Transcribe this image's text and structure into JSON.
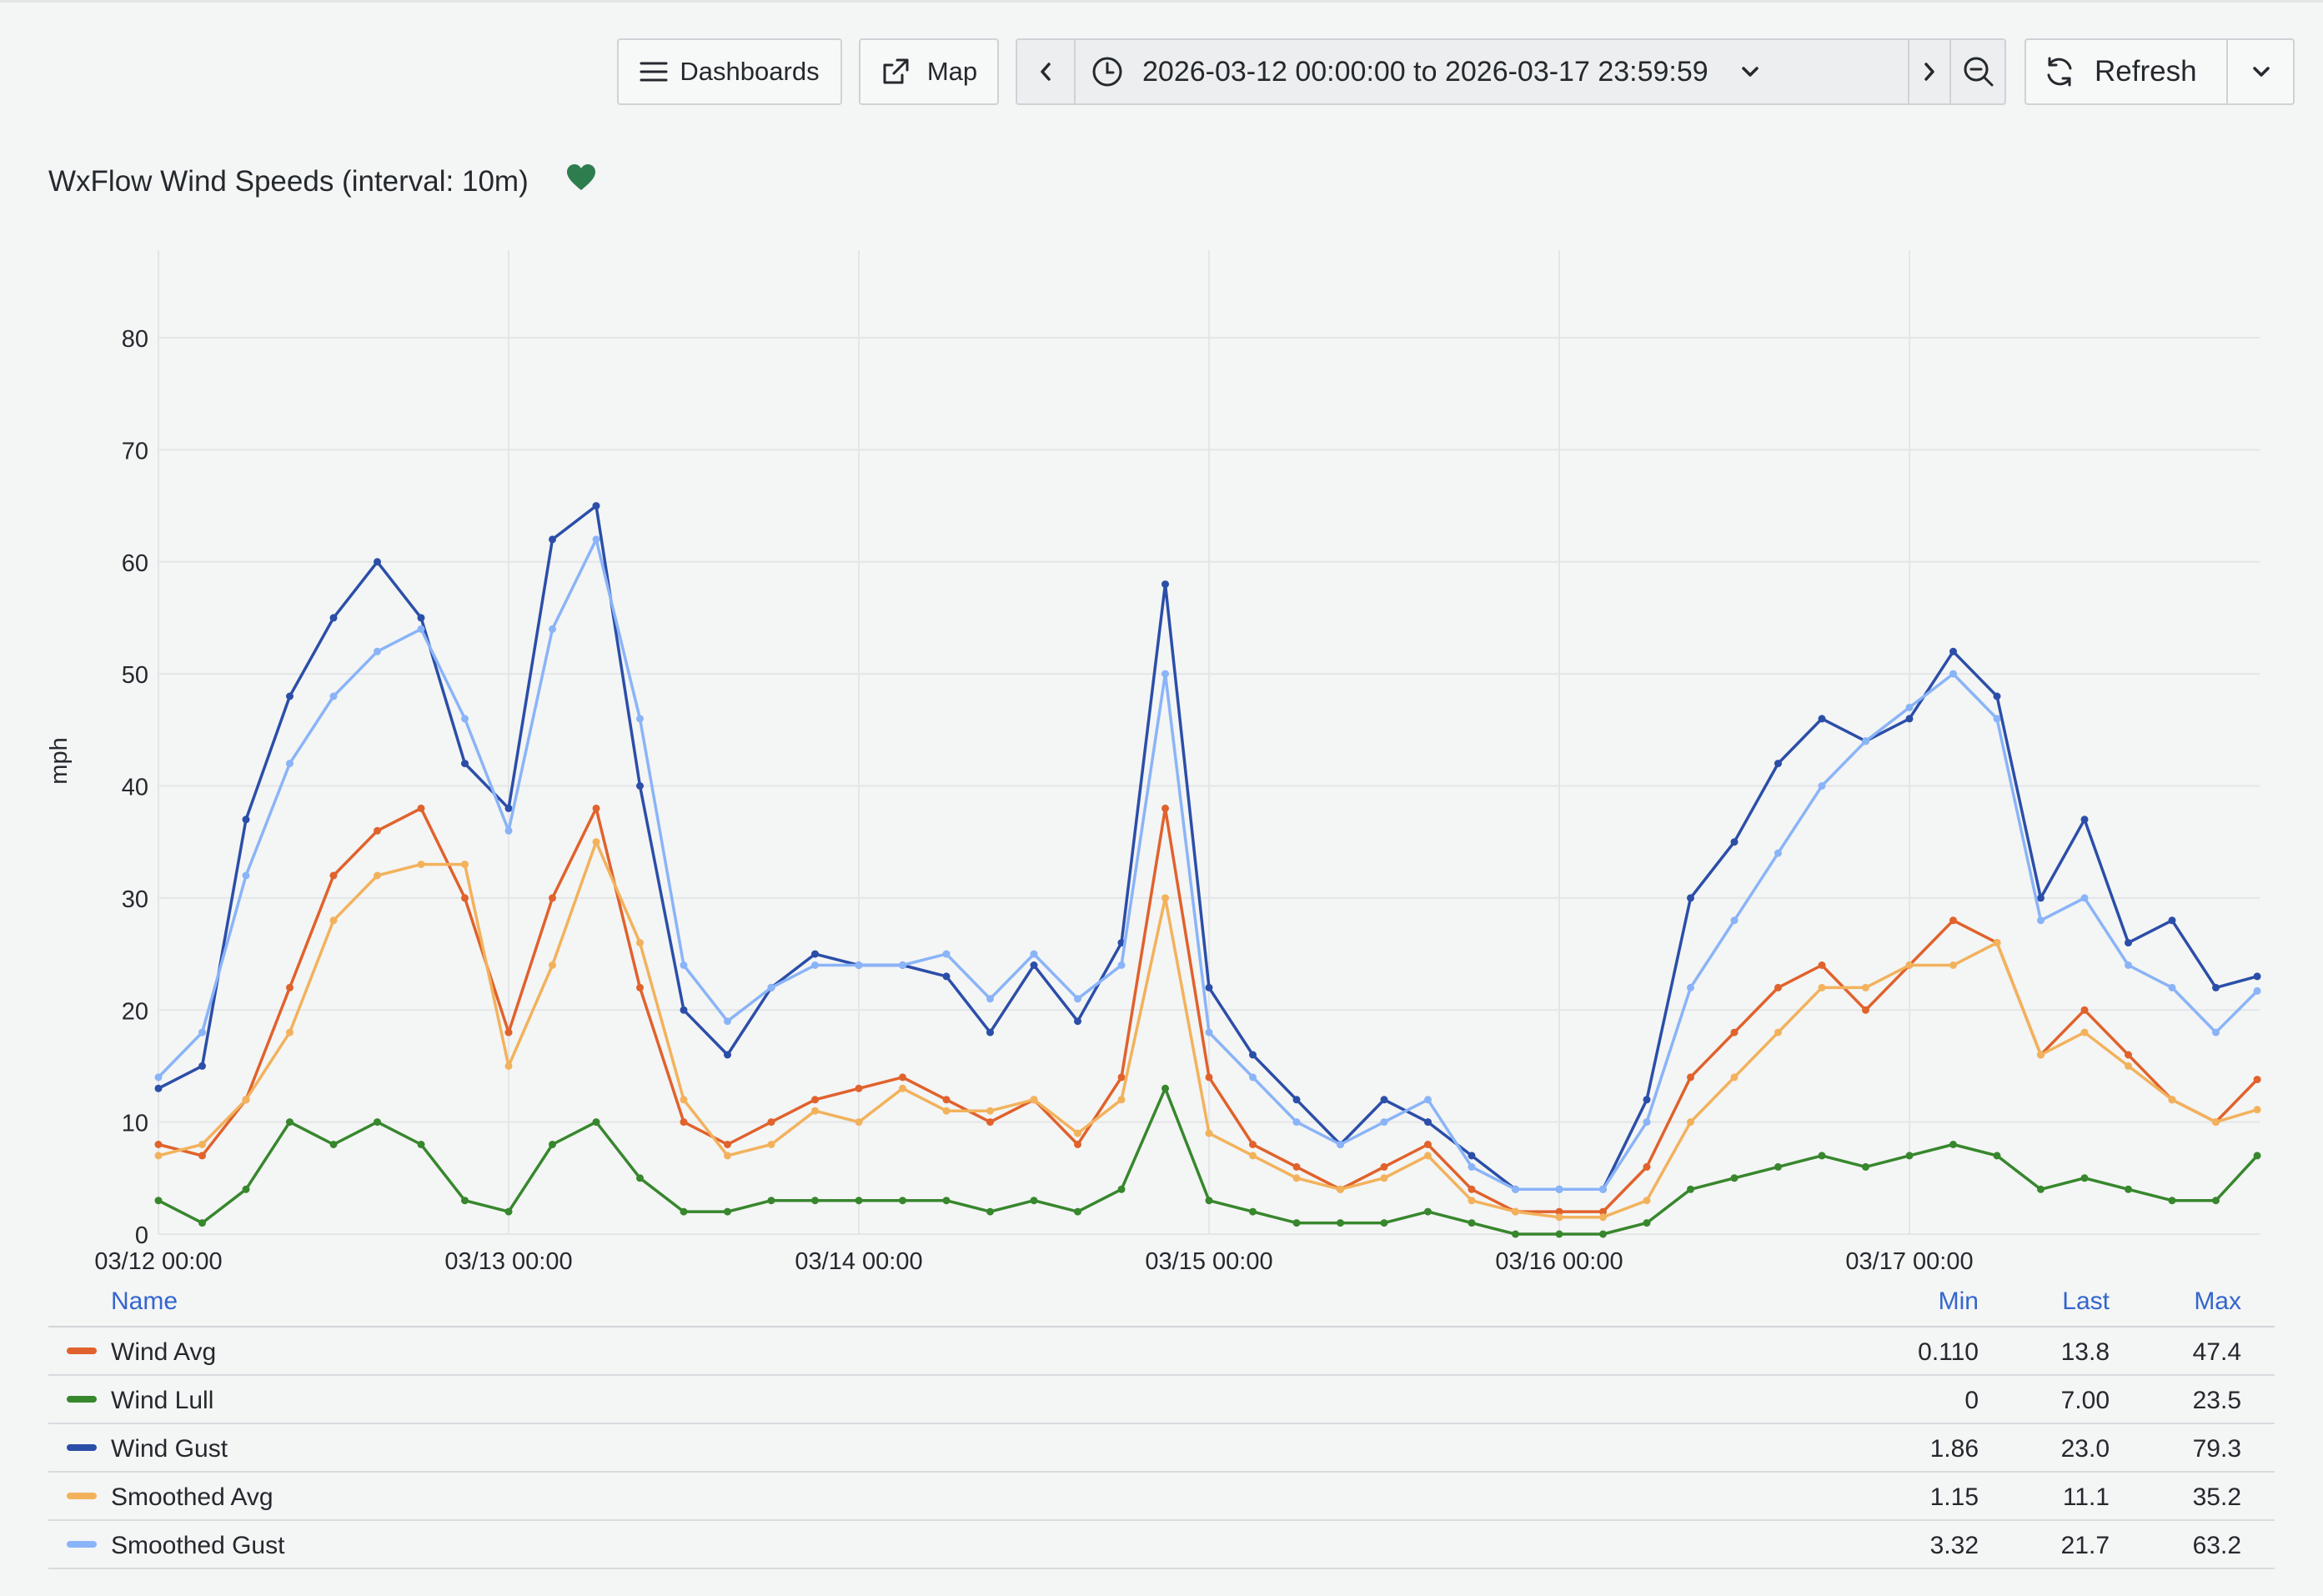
{
  "toolbar": {
    "dashboards_label": "Dashboards",
    "map_label": "Map",
    "time_range": "2026-03-12 00:00:00 to 2026-03-17 23:59:59",
    "refresh_label": "Refresh"
  },
  "panel": {
    "title": "WxFlow Wind Speeds (interval: 10m)",
    "heart_color": "#2e7d4f"
  },
  "legend": {
    "headers": {
      "name": "Name",
      "min": "Min",
      "last": "Last",
      "max": "Max"
    },
    "rows": [
      {
        "name": "Wind Avg",
        "color": "#e0622c",
        "min": "0.110",
        "last": "13.8",
        "max": "47.4"
      },
      {
        "name": "Wind Lull",
        "color": "#37872d",
        "min": "0",
        "last": "7.00",
        "max": "23.5"
      },
      {
        "name": "Wind Gust",
        "color": "#2b4ea8",
        "min": "1.86",
        "last": "23.0",
        "max": "79.3"
      },
      {
        "name": "Smoothed Avg",
        "color": "#f2b25c",
        "min": "1.15",
        "last": "11.1",
        "max": "35.2"
      },
      {
        "name": "Smoothed Gust",
        "color": "#8ab4f8",
        "min": "3.32",
        "last": "21.7",
        "max": "63.2"
      }
    ]
  },
  "chart_data": {
    "type": "line",
    "title": "WxFlow Wind Speeds (interval: 10m)",
    "ylabel": "mph",
    "ylim": [
      0,
      80
    ],
    "yticks": [
      0,
      10,
      20,
      30,
      40,
      50,
      60,
      70,
      80
    ],
    "xlim": [
      "2026-03-12 00:00",
      "2026-03-18 00:00"
    ],
    "xticks": [
      "03/12 00:00",
      "03/13 00:00",
      "03/14 00:00",
      "03/15 00:00",
      "03/16 00:00",
      "03/17 00:00"
    ],
    "grid": true,
    "legend": "bottom",
    "x": [
      "03/12 00:00",
      "03/12 03:00",
      "03/12 06:00",
      "03/12 09:00",
      "03/12 12:00",
      "03/12 15:00",
      "03/12 18:00",
      "03/12 21:00",
      "03/13 00:00",
      "03/13 03:00",
      "03/13 06:00",
      "03/13 09:00",
      "03/13 12:00",
      "03/13 15:00",
      "03/13 18:00",
      "03/13 21:00",
      "03/14 00:00",
      "03/14 03:00",
      "03/14 06:00",
      "03/14 09:00",
      "03/14 12:00",
      "03/14 15:00",
      "03/14 18:00",
      "03/14 21:00",
      "03/15 00:00",
      "03/15 03:00",
      "03/15 06:00",
      "03/15 09:00",
      "03/15 12:00",
      "03/15 15:00",
      "03/15 18:00",
      "03/15 21:00",
      "03/16 00:00",
      "03/16 03:00",
      "03/16 06:00",
      "03/16 09:00",
      "03/16 12:00",
      "03/16 15:00",
      "03/16 18:00",
      "03/16 21:00",
      "03/17 00:00",
      "03/17 03:00",
      "03/17 06:00",
      "03/17 09:00",
      "03/17 12:00",
      "03/17 15:00",
      "03/17 18:00",
      "03/17 21:00",
      "03/17 23:50"
    ],
    "series": [
      {
        "name": "Wind Avg",
        "color": "#e0622c",
        "values": [
          8,
          7,
          12,
          22,
          32,
          36,
          38,
          30,
          18,
          30,
          38,
          22,
          10,
          8,
          10,
          12,
          13,
          14,
          12,
          10,
          12,
          8,
          14,
          38,
          14,
          8,
          6,
          4,
          6,
          8,
          4,
          2,
          2,
          2,
          6,
          14,
          18,
          22,
          24,
          20,
          24,
          28,
          26,
          16,
          20,
          16,
          12,
          10,
          13.8
        ]
      },
      {
        "name": "Wind Lull",
        "color": "#37872d",
        "values": [
          3,
          1,
          4,
          10,
          8,
          10,
          8,
          3,
          2,
          8,
          10,
          5,
          2,
          2,
          3,
          3,
          3,
          3,
          3,
          2,
          3,
          2,
          4,
          13,
          3,
          2,
          1,
          1,
          1,
          2,
          1,
          0,
          0,
          0,
          1,
          4,
          5,
          6,
          7,
          6,
          7,
          8,
          7,
          4,
          5,
          4,
          3,
          3,
          7.0
        ]
      },
      {
        "name": "Wind Gust",
        "color": "#2b4ea8",
        "values": [
          13,
          15,
          37,
          48,
          55,
          60,
          55,
          42,
          38,
          62,
          65,
          40,
          20,
          16,
          22,
          25,
          24,
          24,
          23,
          18,
          24,
          19,
          26,
          58,
          22,
          16,
          12,
          8,
          12,
          10,
          7,
          4,
          4,
          4,
          12,
          30,
          35,
          42,
          46,
          44,
          46,
          52,
          48,
          30,
          37,
          26,
          28,
          22,
          23.0
        ]
      },
      {
        "name": "Smoothed Avg",
        "color": "#f2b25c",
        "values": [
          7,
          8,
          12,
          18,
          28,
          32,
          33,
          33,
          15,
          24,
          35,
          26,
          12,
          7,
          8,
          11,
          10,
          13,
          11,
          11,
          12,
          9,
          12,
          30,
          9,
          7,
          5,
          4,
          5,
          7,
          3,
          2,
          1.5,
          1.5,
          3,
          10,
          14,
          18,
          22,
          22,
          24,
          24,
          26,
          16,
          18,
          15,
          12,
          10,
          11.1
        ]
      },
      {
        "name": "Smoothed Gust",
        "color": "#8ab4f8",
        "values": [
          14,
          18,
          32,
          42,
          48,
          52,
          54,
          46,
          36,
          54,
          62,
          46,
          24,
          19,
          22,
          24,
          24,
          24,
          25,
          21,
          25,
          21,
          24,
          50,
          18,
          14,
          10,
          8,
          10,
          12,
          6,
          4,
          4,
          4,
          10,
          22,
          28,
          34,
          40,
          44,
          47,
          50,
          46,
          28,
          30,
          24,
          22,
          18,
          21.7
        ]
      }
    ]
  }
}
